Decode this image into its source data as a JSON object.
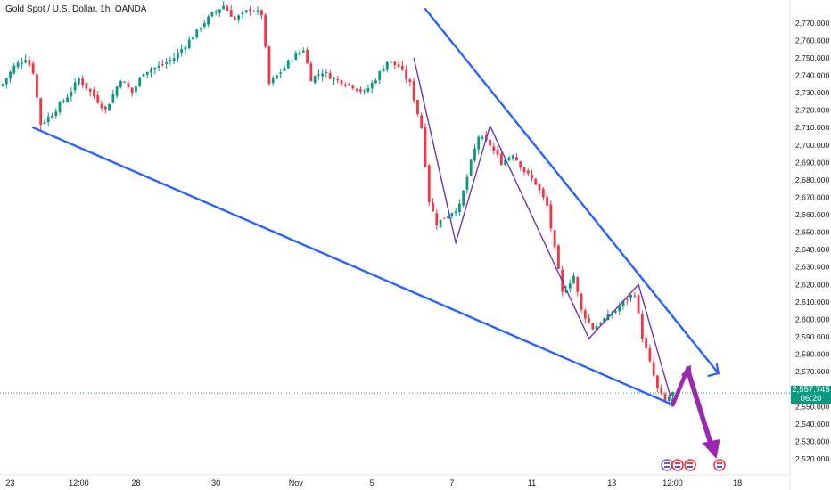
{
  "title": "Gold Spot / U.S. Dollar, 1h, OANDA",
  "last_price": "2,557.745",
  "countdown": "06:20",
  "colors": {
    "up": "#089981",
    "down": "#f23645",
    "trendline": "#2962ff",
    "zigzag": "#673ab7",
    "forecast_arrow": "#9c27b0",
    "price_tag": "#089981"
  },
  "chart_data": {
    "type": "candlestick",
    "symbol": "XAUUSD",
    "interval": "1h",
    "ylim": [
      2520,
      2775
    ],
    "y_ticks": [
      "2,770.000",
      "2,760.000",
      "2,750.000",
      "2,740.000",
      "2,730.000",
      "2,720.000",
      "2,710.000",
      "2,700.000",
      "2,690.000",
      "2,680.000",
      "2,670.000",
      "2,660.000",
      "2,650.000",
      "2,640.000",
      "2,630.000",
      "2,620.000",
      "2,610.000",
      "2,600.000",
      "2,590.000",
      "2,580.000",
      "2,570.000",
      "2,560.000",
      "2,550.000",
      "2,540.000",
      "2,530.000",
      "2,520.000"
    ],
    "x_ticks": [
      "23",
      "12:00",
      "28",
      "30",
      "Nov",
      "5",
      "7",
      "11",
      "13",
      "12:00",
      "18"
    ],
    "price_path": [
      {
        "t": 0,
        "p": 2735
      },
      {
        "t": 3,
        "p": 2745
      },
      {
        "t": 6,
        "p": 2750
      },
      {
        "t": 8,
        "p": 2742
      },
      {
        "t": 10,
        "p": 2712
      },
      {
        "t": 13,
        "p": 2718
      },
      {
        "t": 17,
        "p": 2728
      },
      {
        "t": 20,
        "p": 2738
      },
      {
        "t": 24,
        "p": 2728
      },
      {
        "t": 27,
        "p": 2720
      },
      {
        "t": 31,
        "p": 2738
      },
      {
        "t": 34,
        "p": 2730
      },
      {
        "t": 37,
        "p": 2742
      },
      {
        "t": 41,
        "p": 2745
      },
      {
        "t": 45,
        "p": 2750
      },
      {
        "t": 49,
        "p": 2760
      },
      {
        "t": 52,
        "p": 2768
      },
      {
        "t": 55,
        "p": 2775
      },
      {
        "t": 58,
        "p": 2780
      },
      {
        "t": 61,
        "p": 2772
      },
      {
        "t": 65,
        "p": 2778
      },
      {
        "t": 68,
        "p": 2775
      },
      {
        "t": 70,
        "p": 2735
      },
      {
        "t": 73,
        "p": 2742
      },
      {
        "t": 76,
        "p": 2750
      },
      {
        "t": 79,
        "p": 2755
      },
      {
        "t": 81,
        "p": 2738
      },
      {
        "t": 84,
        "p": 2742
      },
      {
        "t": 87,
        "p": 2738
      },
      {
        "t": 91,
        "p": 2735
      },
      {
        "t": 95,
        "p": 2730
      },
      {
        "t": 98,
        "p": 2738
      },
      {
        "t": 101,
        "p": 2748
      },
      {
        "t": 104,
        "p": 2745
      },
      {
        "t": 107,
        "p": 2735
      },
      {
        "t": 110,
        "p": 2710
      },
      {
        "t": 112,
        "p": 2668
      },
      {
        "t": 114,
        "p": 2655
      },
      {
        "t": 117,
        "p": 2660
      },
      {
        "t": 120,
        "p": 2665
      },
      {
        "t": 123,
        "p": 2690
      },
      {
        "t": 125,
        "p": 2705
      },
      {
        "t": 128,
        "p": 2700
      },
      {
        "t": 131,
        "p": 2690
      },
      {
        "t": 134,
        "p": 2695
      },
      {
        "t": 137,
        "p": 2685
      },
      {
        "t": 140,
        "p": 2678
      },
      {
        "t": 143,
        "p": 2665
      },
      {
        "t": 145,
        "p": 2640
      },
      {
        "t": 147,
        "p": 2615
      },
      {
        "t": 150,
        "p": 2625
      },
      {
        "t": 152,
        "p": 2605
      },
      {
        "t": 155,
        "p": 2595
      },
      {
        "t": 158,
        "p": 2600
      },
      {
        "t": 161,
        "p": 2605
      },
      {
        "t": 164,
        "p": 2612
      },
      {
        "t": 166,
        "p": 2615
      },
      {
        "t": 168,
        "p": 2590
      },
      {
        "t": 170,
        "p": 2575
      },
      {
        "t": 172,
        "p": 2560
      },
      {
        "t": 174,
        "p": 2553
      },
      {
        "t": 176,
        "p": 2557.745
      }
    ],
    "zigzag_points": [
      {
        "t": 108,
        "p": 2750
      },
      {
        "t": 119,
        "p": 2644
      },
      {
        "t": 128,
        "p": 2711
      },
      {
        "t": 154,
        "p": 2589
      },
      {
        "t": 167,
        "p": 2620
      },
      {
        "t": 176,
        "p": 2551
      }
    ],
    "trendlines": [
      {
        "from": {
          "t": 8,
          "p": 2710
        },
        "to": {
          "t": 176,
          "p": 2551
        }
      },
      {
        "from": {
          "t": 111,
          "p": 2778
        },
        "to": {
          "t": 188,
          "p": 2569
        }
      }
    ],
    "forecast_arrow": [
      {
        "t": 176,
        "p": 2551
      },
      {
        "t": 180,
        "p": 2572
      },
      {
        "t": 187,
        "p": 2521
      }
    ],
    "last_price": 2557.745,
    "grid": false
  }
}
